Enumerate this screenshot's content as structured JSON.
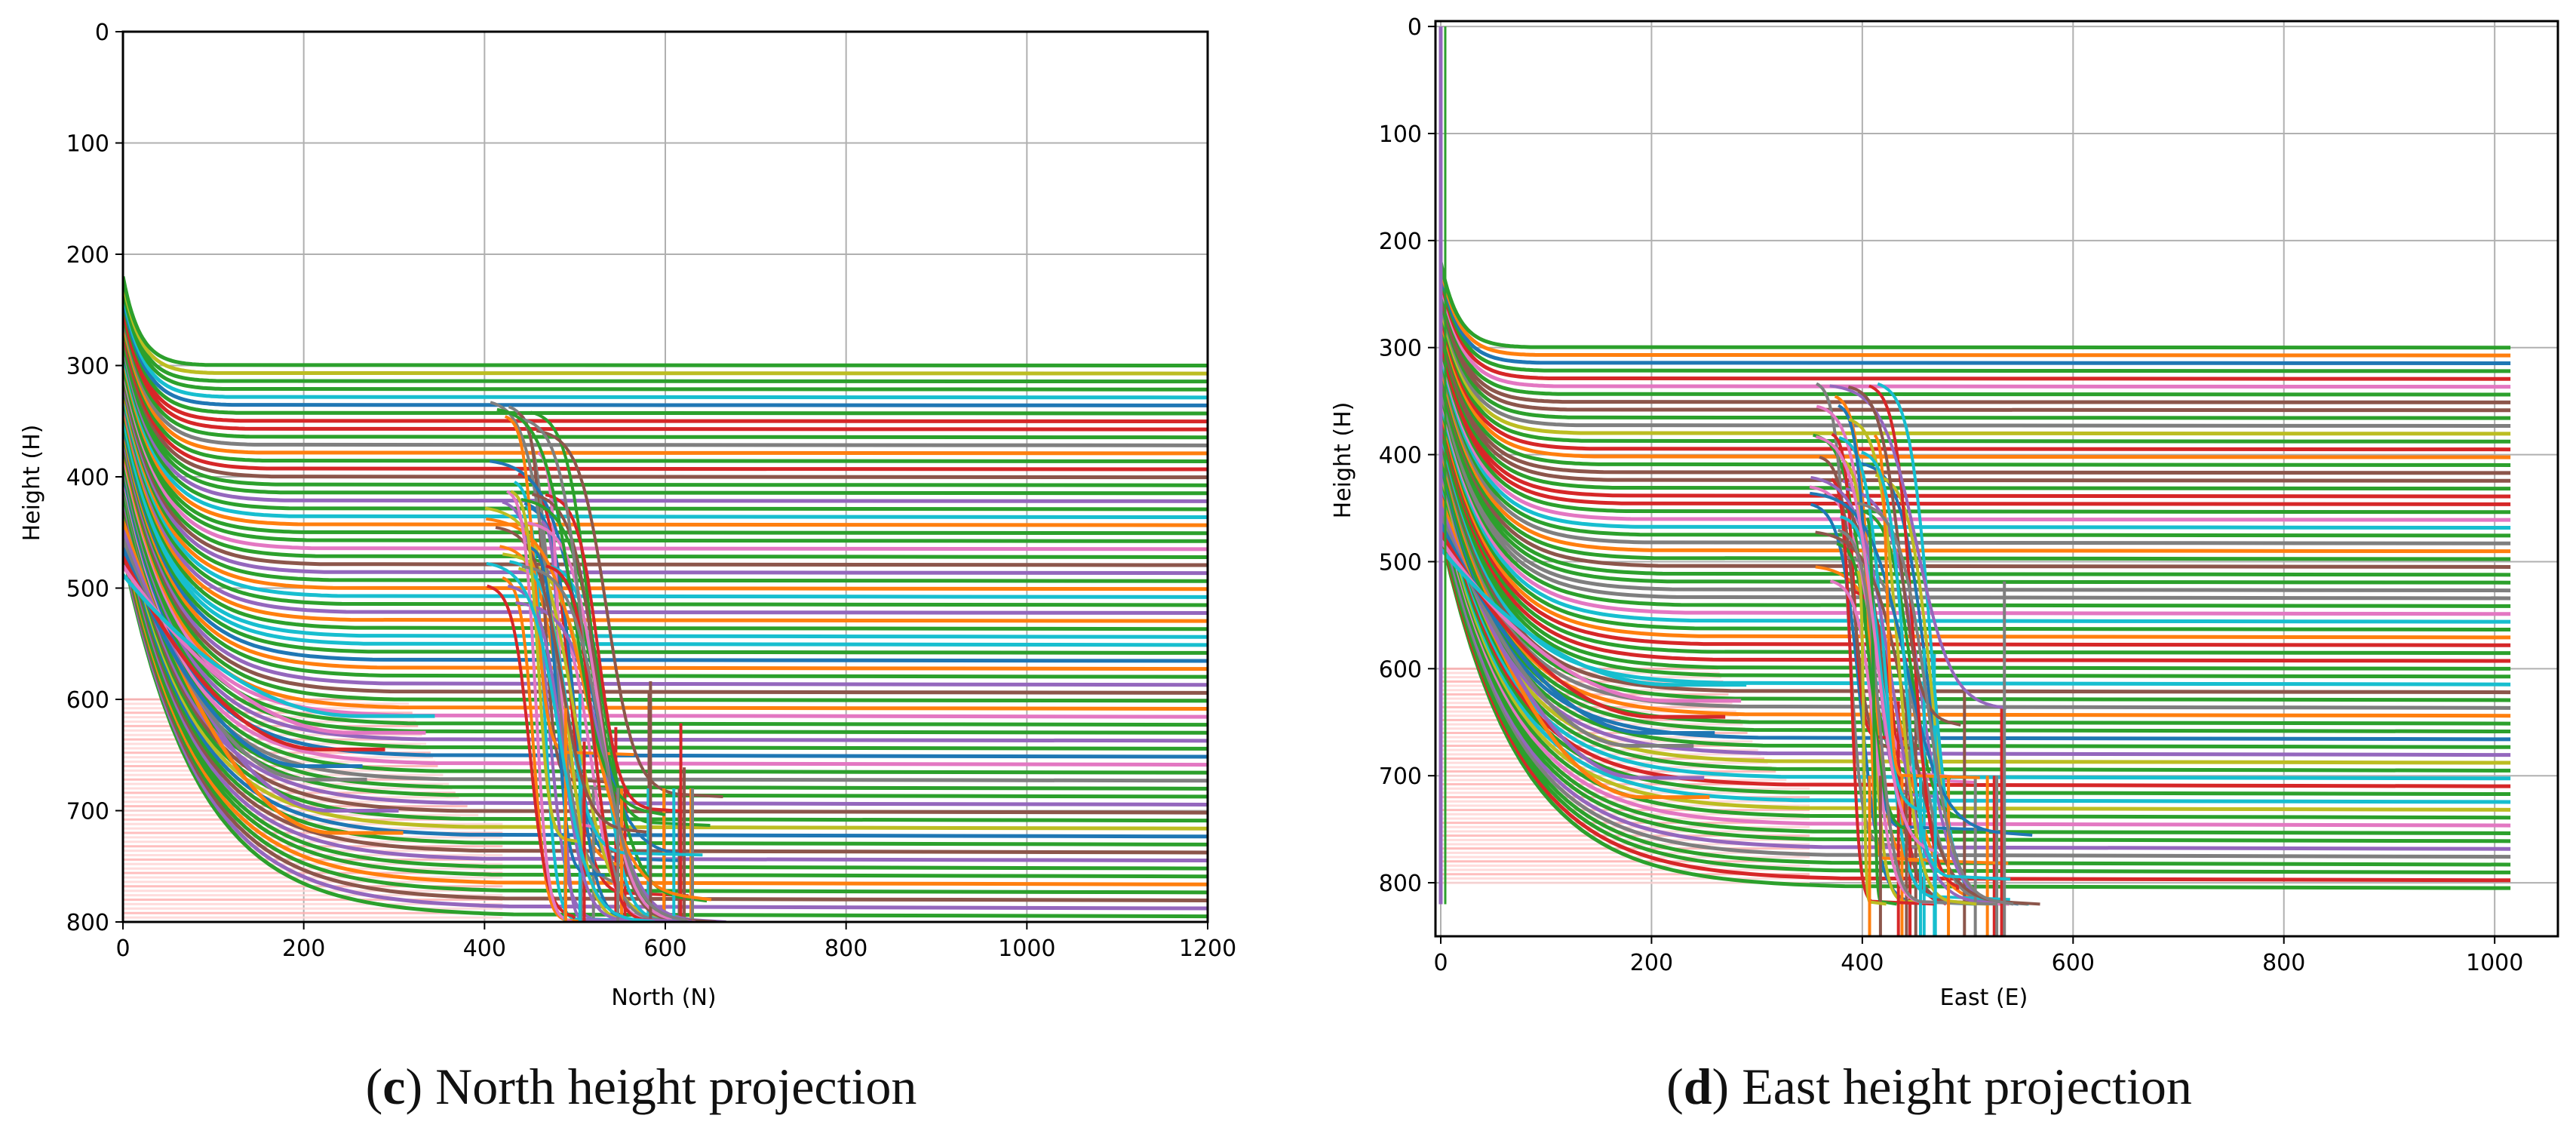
{
  "colors": {
    "palette": [
      "#1f77b4",
      "#ff7f0e",
      "#2ca02c",
      "#d62728",
      "#9467bd",
      "#8c564b",
      "#e377c2",
      "#7f7f7f",
      "#bcbd22",
      "#17becf"
    ],
    "dominant": "#2ca02c",
    "fill_region": "#ffd6d6",
    "grid": "#b0b0b0",
    "frame": "#000000"
  },
  "chart_data": [
    {
      "type": "line",
      "panel_letter": "c",
      "caption": "North height projection",
      "xlabel": "North (N)",
      "ylabel": "Height (H)",
      "xlim": [
        0,
        1200
      ],
      "ylim": [
        800,
        0
      ],
      "xticks": [
        0,
        200,
        400,
        600,
        800,
        1000,
        1200
      ],
      "yticks": [
        0,
        100,
        200,
        300,
        400,
        500,
        600,
        700,
        800
      ],
      "grid": true,
      "legend": "none",
      "description": "Many trajectories descend from near the origin, level off at heights between 300 and 800, with a group crossing near North 500-700; pink shaded band from height 600 to 800 for North 0 to about 420",
      "bundle": {
        "count": 70,
        "h_min": 300,
        "h_max": 795,
        "x_end": 1200,
        "rise_start_h": 220
      },
      "crossing": {
        "count": 40,
        "h_top": 330,
        "h_bottom": 800,
        "x_from": 400,
        "x_to": 700,
        "x_center_bottom": 560
      },
      "low_curves": [
        {
          "end_x": 310,
          "end_h": 720
        },
        {
          "end_x": 305,
          "end_h": 700
        },
        {
          "end_x": 270,
          "end_h": 672
        },
        {
          "end_x": 265,
          "end_h": 660
        },
        {
          "end_x": 290,
          "end_h": 645
        },
        {
          "end_x": 335,
          "end_h": 630
        },
        {
          "end_x": 345,
          "end_h": 615
        }
      ],
      "fill": {
        "h_from": 600,
        "h_to": 800,
        "x_from": 0,
        "x_to": 420,
        "bump_peak_x": 380
      }
    },
    {
      "type": "line",
      "panel_letter": "d",
      "caption": "East height projection",
      "xlabel": "East (E)",
      "ylabel": "Height (H)",
      "xlim": [
        -5,
        1060
      ],
      "ylim": [
        850,
        -5
      ],
      "xticks": [
        0,
        200,
        400,
        600,
        800,
        1000
      ],
      "yticks": [
        0,
        100,
        200,
        300,
        400,
        500,
        600,
        700,
        800
      ],
      "grid": true,
      "legend": "none",
      "description": "Trajectories descend from near the origin, level off at heights between 300 and 800 and end near East 1015; crossing group near East 430-560; pink shaded band from height 600 to 800 for East 0 to about 350",
      "bundle": {
        "count": 70,
        "h_min": 300,
        "h_max": 805,
        "x_end": 1015,
        "rise_start_h": 220
      },
      "crossing": {
        "count": 40,
        "h_top": 330,
        "h_bottom": 820,
        "x_from": 350,
        "x_to": 610,
        "x_center_bottom": 470
      },
      "low_curves": [
        {
          "end_x": 255,
          "end_h": 720
        },
        {
          "end_x": 250,
          "end_h": 702
        },
        {
          "end_x": 240,
          "end_h": 672
        },
        {
          "end_x": 260,
          "end_h": 660
        },
        {
          "end_x": 270,
          "end_h": 645
        },
        {
          "end_x": 285,
          "end_h": 630
        },
        {
          "end_x": 290,
          "end_h": 615
        }
      ],
      "fill": {
        "h_from": 600,
        "h_to": 800,
        "x_from": 0,
        "x_to": 350,
        "bump_peak_x": 320
      },
      "vertical_spike": {
        "x": 0,
        "h_from": 0,
        "h_to": 820
      }
    }
  ]
}
